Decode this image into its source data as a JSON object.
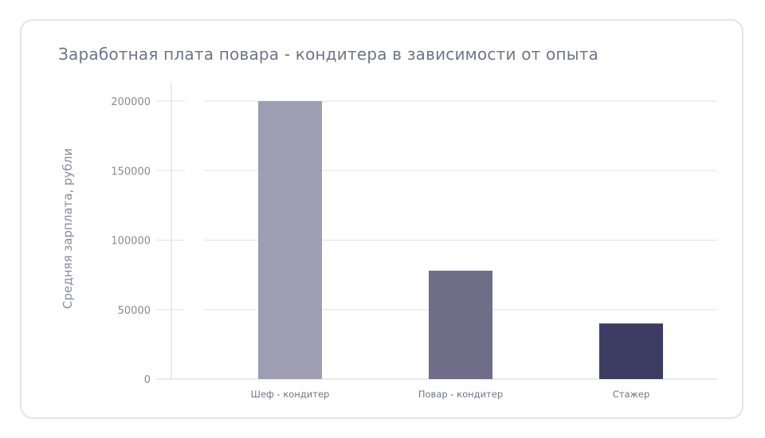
{
  "chart_data": {
    "type": "bar",
    "title": "Заработная плата повара - кондитера в зависимости от опыта",
    "xlabel": "",
    "ylabel": "Средняя зарплата, рубли",
    "categories": [
      "Шеф - кондитер",
      "Повар - кондитер",
      "Стажер"
    ],
    "values": [
      200000,
      78000,
      40000
    ],
    "yticks": [
      0,
      50000,
      100000,
      150000,
      200000
    ],
    "ylim": [
      0,
      200000
    ],
    "grid": true,
    "legend": "none",
    "bar_colors": [
      "#9e9eb2",
      "#6e6e89",
      "#3d3d63"
    ]
  },
  "colors": {
    "card_border": "#e4e4ec",
    "grid": "#e2e2ea",
    "axis": "#d6d6de",
    "text": "#73738a"
  }
}
